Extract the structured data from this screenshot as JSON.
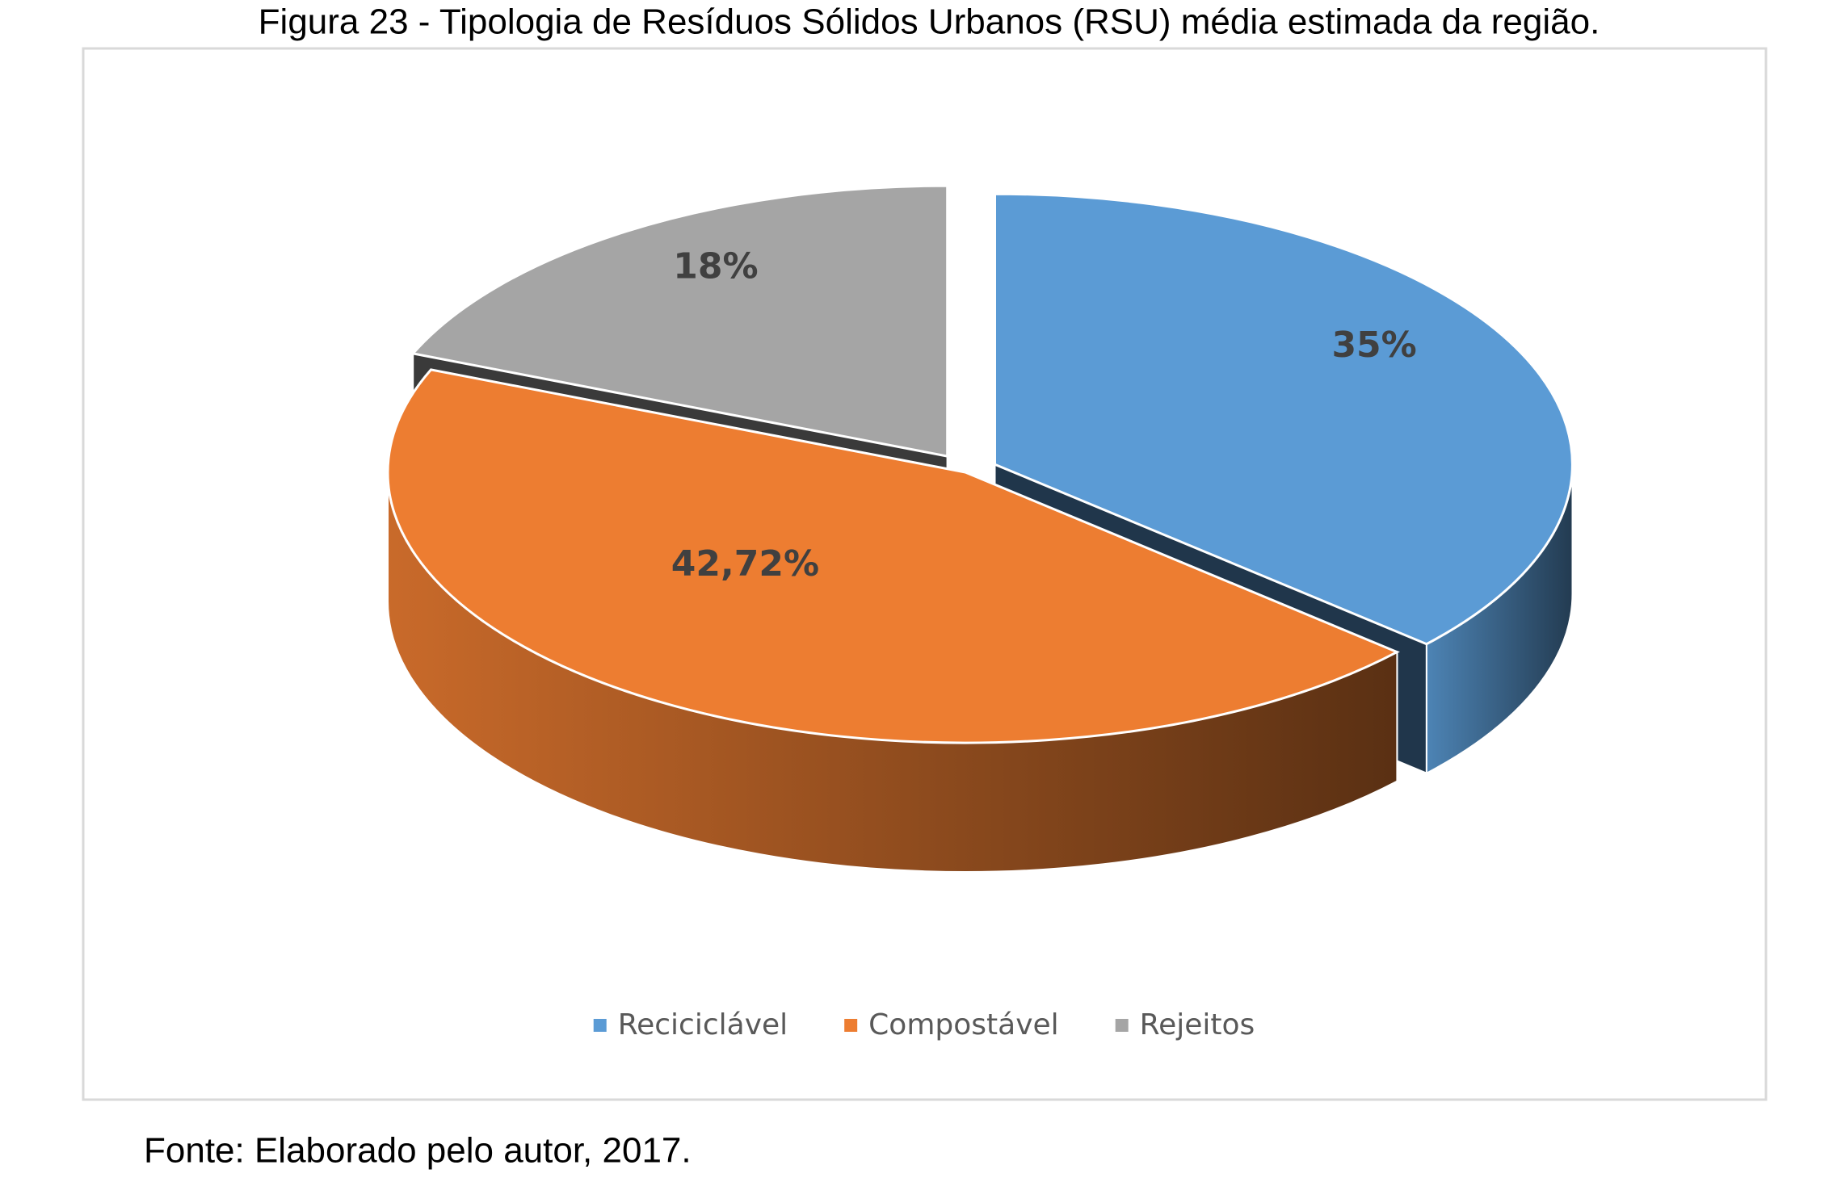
{
  "chart_data": {
    "type": "pie3d",
    "title": "Figura 23 - Tipologia de Resíduos Sólidos Urbanos (RSU) média estimada da região.",
    "categories": [
      "Reciciclável",
      "Compostável",
      "Rejeitos"
    ],
    "values": [
      35,
      42.72,
      18
    ],
    "value_labels": [
      "35%",
      "42,72%",
      "18%"
    ],
    "colors": [
      "#5b9bd5",
      "#ed7d31",
      "#a5a5a5"
    ],
    "legend": "bottom",
    "source": "Fonte: Elaborado pelo autor, 2017."
  }
}
